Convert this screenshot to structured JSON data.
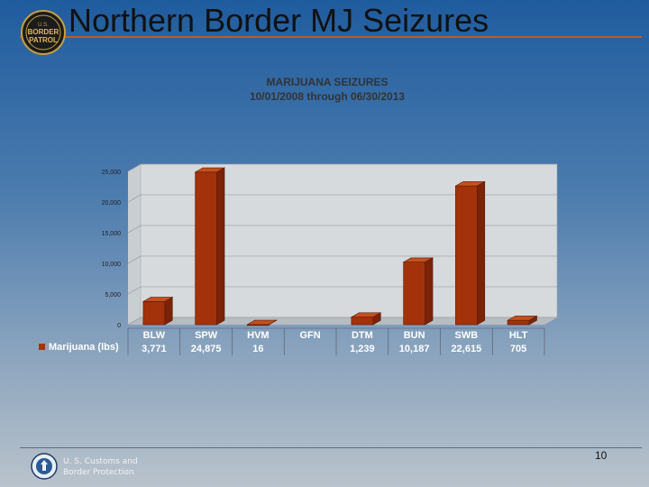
{
  "slide": {
    "title": "Northern Border MJ Seizures",
    "logo_text": [
      "U.S.",
      "BORDER",
      "PATROL"
    ],
    "agency_line1": "U. S. Customs and",
    "agency_line2": "Border Protection",
    "page_number": "10",
    "colors": {
      "accent_rule": "#c25a1e",
      "bar": "#a3320a"
    }
  },
  "chart_data": {
    "type": "bar",
    "title": "MARIJUANA SEIZURES",
    "subtitle": "10/01/2008 through 06/30/2013",
    "categories": [
      "BLW",
      "SPW",
      "HVM",
      "GFN",
      "DTM",
      "BUN",
      "SWB",
      "HLT"
    ],
    "series": [
      {
        "name": "Marijuana (lbs)",
        "values": [
          3771,
          24875,
          16,
          null,
          1239,
          10187,
          22615,
          705
        ],
        "labels": [
          "3,771",
          "24,875",
          "16",
          "",
          "1,239",
          "10,187",
          "22,615",
          "705"
        ]
      }
    ],
    "ylim": [
      0,
      25000
    ],
    "yticks": [
      0,
      5000,
      10000,
      15000,
      20000,
      25000
    ],
    "ytick_labels": [
      "0",
      "5,000",
      "10,000",
      "15,000",
      "20,000",
      "25,000"
    ],
    "grid": true,
    "legend": "bottom-left"
  }
}
